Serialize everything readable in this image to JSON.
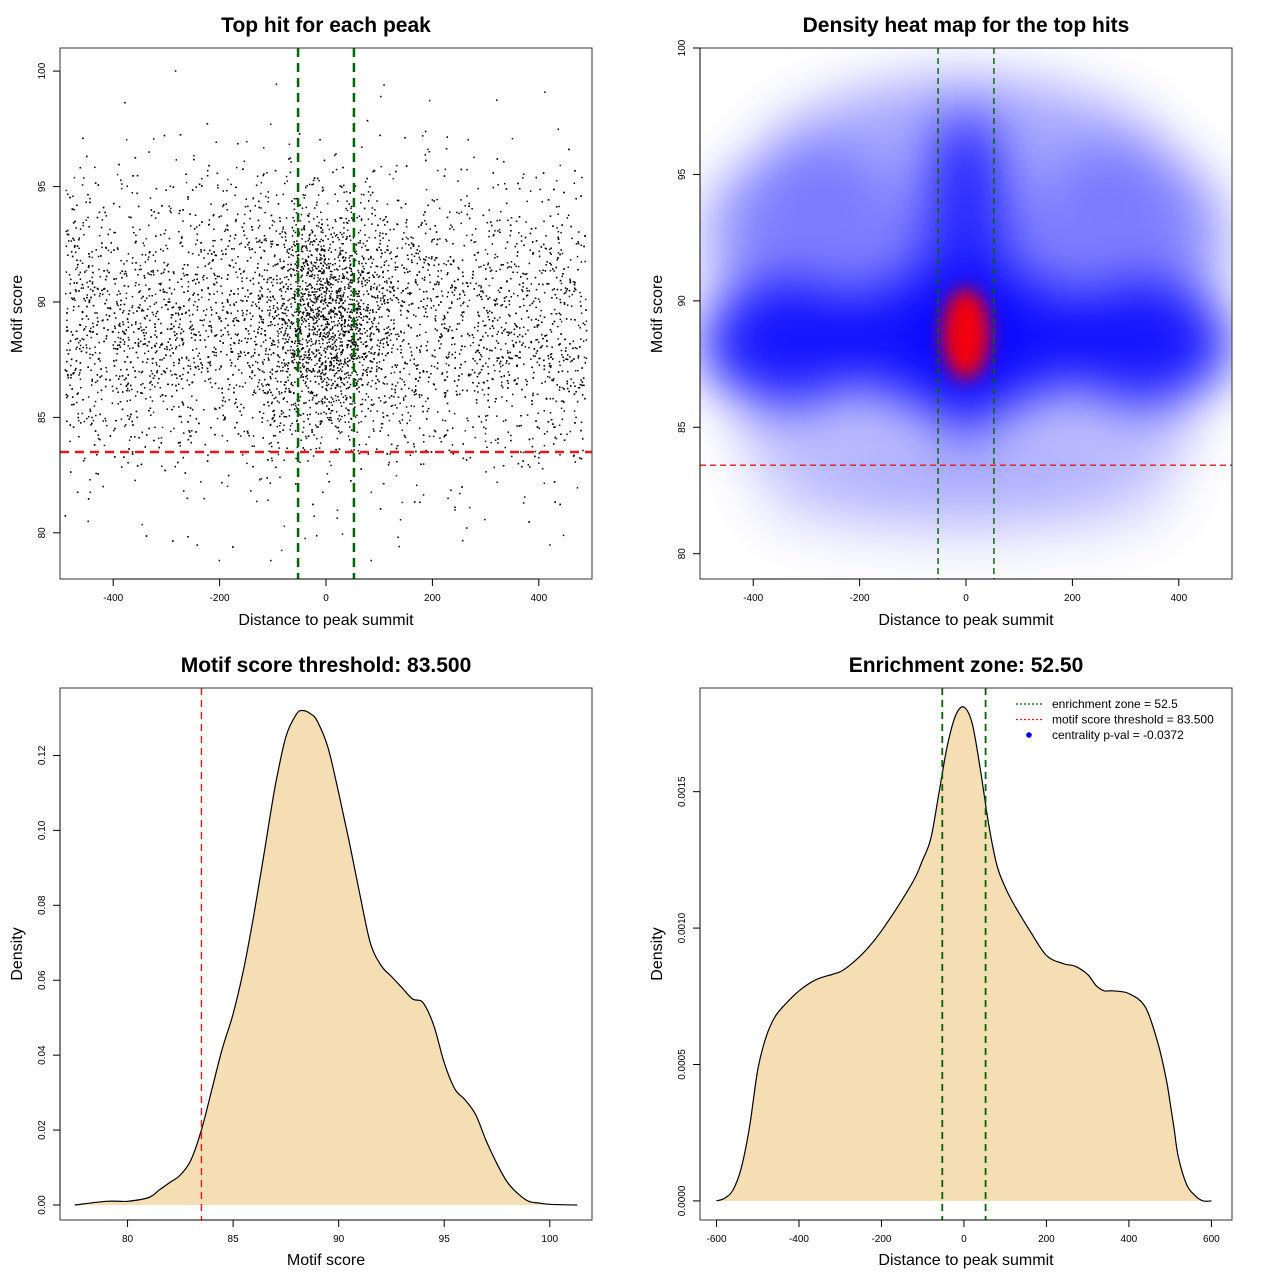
{
  "chart_data": [
    {
      "type": "scatter",
      "title": "Top hit for each peak",
      "xlabel": "Distance to peak summit",
      "ylabel": "Motif score",
      "xlim": [
        -500,
        500
      ],
      "ylim": [
        78,
        101
      ],
      "x_ticks": [
        -400,
        -200,
        0,
        200,
        400
      ],
      "y_ticks": [
        80,
        85,
        90,
        95,
        100
      ],
      "point_summary": {
        "x_range": [
          -490,
          490
        ],
        "y_range": [
          78.8,
          100
        ],
        "y_mode": 88.5,
        "dense_x_range": [
          -60,
          60
        ],
        "dense_y_range": [
          85,
          93
        ]
      },
      "vlines": [
        {
          "x": -52.5,
          "color": "#006400",
          "style": "dashed"
        },
        {
          "x": 52.5,
          "color": "#006400",
          "style": "dashed"
        }
      ],
      "hlines": [
        {
          "y": 83.5,
          "color": "#e31a1c",
          "style": "dashed"
        }
      ],
      "point_color": "#000000"
    },
    {
      "type": "heatmap",
      "title": "Density heat map for the top hits",
      "xlabel": "Distance to peak summit",
      "ylabel": "Motif score",
      "xlim": [
        -500,
        500
      ],
      "ylim": [
        79,
        100
      ],
      "x_ticks": [
        -400,
        -200,
        0,
        200,
        400
      ],
      "y_ticks": [
        80,
        85,
        90,
        95,
        100
      ],
      "density_peak": {
        "x": 0,
        "y": 88.7
      },
      "colors": {
        "low": "#ffffff",
        "mid": "#0000ff",
        "high": "#ff0000"
      },
      "vlines": [
        {
          "x": -52.5,
          "color": "#006400",
          "style": "dashed"
        },
        {
          "x": 52.5,
          "color": "#006400",
          "style": "dashed"
        }
      ],
      "hlines": [
        {
          "y": 83.5,
          "color": "#e31a1c",
          "style": "dashed"
        }
      ]
    },
    {
      "type": "area",
      "title": "Motif score threshold: 83.500",
      "xlabel": "Motif score",
      "ylabel": "Density",
      "xlim": [
        76.8,
        102
      ],
      "ylim": [
        -0.004,
        0.138
      ],
      "x_ticks": [
        80,
        85,
        90,
        95,
        100
      ],
      "y_ticks": [
        0.0,
        0.02,
        0.04,
        0.06,
        0.08,
        0.1,
        0.12
      ],
      "y_tick_labels": [
        "0.00",
        "0.02",
        "0.04",
        "0.06",
        "0.08",
        "0.10",
        "0.12"
      ],
      "x": [
        77.5,
        79,
        80,
        81,
        81.5,
        82,
        82.5,
        83,
        83.5,
        84,
        84.5,
        85,
        85.5,
        86,
        86.5,
        87,
        87.5,
        88,
        88.3,
        88.7,
        89,
        89.5,
        90,
        90.5,
        91,
        91.5,
        92,
        92.5,
        93,
        93.5,
        94,
        94.5,
        95,
        95.5,
        96,
        96.5,
        97,
        97.5,
        98,
        98.5,
        99,
        99.5,
        100,
        101.3
      ],
      "y": [
        0,
        0.001,
        0.001,
        0.002,
        0.004,
        0.006,
        0.008,
        0.012,
        0.02,
        0.031,
        0.042,
        0.051,
        0.063,
        0.078,
        0.095,
        0.112,
        0.125,
        0.131,
        0.132,
        0.131,
        0.129,
        0.122,
        0.11,
        0.097,
        0.083,
        0.07,
        0.064,
        0.061,
        0.058,
        0.055,
        0.054,
        0.048,
        0.038,
        0.031,
        0.028,
        0.024,
        0.017,
        0.011,
        0.006,
        0.003,
        0.001,
        0.0005,
        0.0002,
        0
      ],
      "fill_color": "#f5deb3",
      "vlines": [
        {
          "x": 83.5,
          "color": "#e31a1c",
          "style": "dashed"
        }
      ]
    },
    {
      "type": "area",
      "title": "Enrichment zone: 52.50",
      "xlabel": "Distance to peak summit",
      "ylabel": "Density",
      "xlim": [
        -640,
        650
      ],
      "ylim": [
        -7e-05,
        0.00188
      ],
      "x_ticks": [
        -600,
        -400,
        -200,
        0,
        200,
        400,
        600
      ],
      "y_ticks": [
        0.0,
        0.0005,
        0.001,
        0.0015
      ],
      "y_tick_labels": [
        "0.0000",
        "0.0005",
        "0.0010",
        "0.0015"
      ],
      "x": [
        -600,
        -580,
        -560,
        -540,
        -520,
        -500,
        -480,
        -460,
        -440,
        -400,
        -360,
        -320,
        -300,
        -280,
        -250,
        -220,
        -200,
        -160,
        -120,
        -100,
        -80,
        -60,
        -40,
        -20,
        0,
        20,
        40,
        60,
        80,
        100,
        120,
        160,
        200,
        240,
        270,
        300,
        320,
        340,
        360,
        400,
        440,
        470,
        490,
        500,
        510,
        520,
        540,
        560,
        580,
        600
      ],
      "y": [
        0,
        1e-05,
        4e-05,
        0.00012,
        0.00027,
        0.00048,
        0.0006,
        0.00067,
        0.00071,
        0.00077,
        0.00081,
        0.00083,
        0.00084,
        0.00086,
        0.0009,
        0.00095,
        0.00099,
        0.00108,
        0.00118,
        0.00125,
        0.00133,
        0.0015,
        0.00167,
        0.00178,
        0.00181,
        0.00175,
        0.00158,
        0.00138,
        0.00123,
        0.00115,
        0.00109,
        0.00099,
        0.0009,
        0.00087,
        0.00086,
        0.00083,
        0.00079,
        0.00077,
        0.00077,
        0.00076,
        0.00071,
        0.00058,
        0.00045,
        0.00036,
        0.00026,
        0.00016,
        6e-05,
        2e-05,
        0,
        0
      ],
      "fill_color": "#f5deb3",
      "vlines": [
        {
          "x": -52.5,
          "color": "#006400",
          "style": "dashed"
        },
        {
          "x": 52.5,
          "color": "#006400",
          "style": "dashed"
        }
      ],
      "legend": {
        "placement": "top-right",
        "entries": [
          {
            "label": "enrichment zone = 52.5",
            "color": "#006400",
            "symbol": "dotted-line"
          },
          {
            "label": "motif score threshold = 83.500",
            "color": "#e31a1c",
            "symbol": "dotted-line"
          },
          {
            "label": "centrality p-val = -0.0372",
            "color": "#0000ff",
            "symbol": "point"
          }
        ]
      }
    }
  ]
}
